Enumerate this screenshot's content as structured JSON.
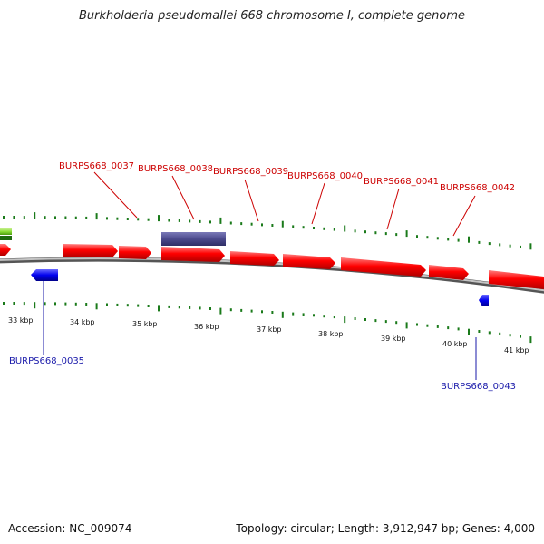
{
  "title": "Burkholderia pseudomallei 668 chromosome I, complete genome",
  "footer": {
    "accession": "Accession: NC_009074",
    "summary": "Topology: circular; Length: 3,912,947 bp; Genes: 4,000"
  },
  "colors": {
    "forward_gene": "#ff0000",
    "reverse_gene": "#0000ee",
    "rna_gene": "#4b4a8c",
    "highlight_gene": "#88dd33",
    "gc_ticks": "#1a7a1a",
    "backbone": "#8a8a8a",
    "forward_label": "#cc0000",
    "reverse_label": "#1a1aaa"
  },
  "scale_labels": [
    "33 kbp",
    "34 kbp",
    "35 kbp",
    "36 kbp",
    "37 kbp",
    "38 kbp",
    "39 kbp",
    "40 kbp",
    "41 kbp"
  ],
  "forward_gene_labels": [
    "BURPS668_0037",
    "BURPS668_0038",
    "BURPS668_0039",
    "BURPS668_0040",
    "BURPS668_0041",
    "BURPS668_0042"
  ],
  "reverse_gene_labels": [
    "BURPS668_0035",
    "BURPS668_0043"
  ]
}
